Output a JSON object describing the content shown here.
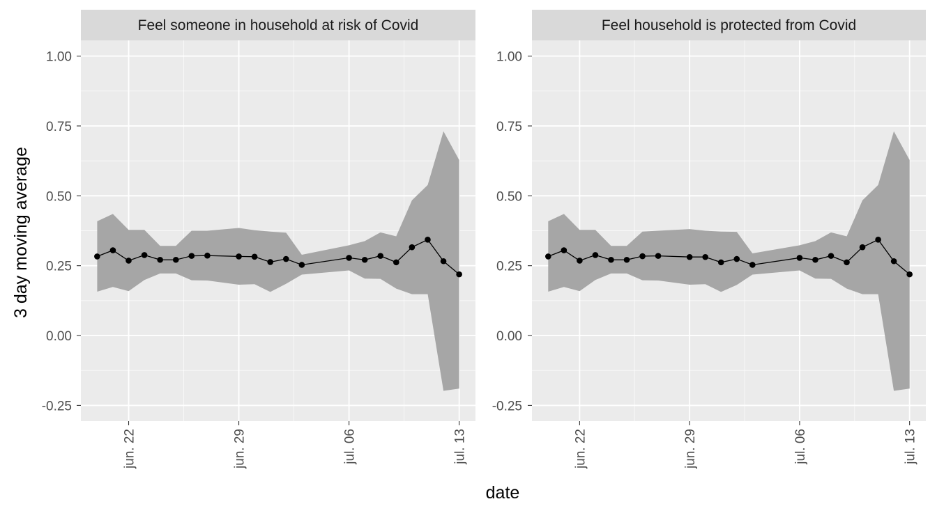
{
  "chart_data": {
    "type": "line",
    "xlabel": "date",
    "ylabel": "3 day moving average",
    "ylim": [
      -0.25,
      1.0
    ],
    "y_ticks": [
      -0.25,
      0.0,
      0.25,
      0.5,
      0.75,
      1.0
    ],
    "y_tick_labels": [
      "-0.25",
      "0.00",
      "0.25",
      "0.50",
      "0.75",
      "1.00"
    ],
    "x_ticks": [
      "2020-06-22",
      "2020-06-29",
      "2020-07-06",
      "2020-07-13"
    ],
    "x_tick_labels": [
      "jun. 22",
      "jun. 29",
      "jul. 06",
      "jul. 13"
    ],
    "grid": true,
    "ribbon": "confidence band",
    "colors": {
      "panel_bg": "#ebebeb",
      "strip_bg": "#d9d9d9",
      "grid": "#ffffff",
      "line": "#000000",
      "band": "#a6a6a6"
    },
    "facets": [
      {
        "title": "Feel someone in household at risk of Covid",
        "points": [
          {
            "x": "2020-06-20",
            "y": 0.283,
            "lo": 0.157,
            "hi": 0.409
          },
          {
            "x": "2020-06-21",
            "y": 0.305,
            "lo": 0.174,
            "hi": 0.435
          },
          {
            "x": "2020-06-22",
            "y": 0.268,
            "lo": 0.159,
            "hi": 0.378
          },
          {
            "x": "2020-06-23",
            "y": 0.288,
            "lo": 0.199,
            "hi": 0.378
          },
          {
            "x": "2020-06-24",
            "y": 0.271,
            "lo": 0.222,
            "hi": 0.321
          },
          {
            "x": "2020-06-25",
            "y": 0.271,
            "lo": 0.222,
            "hi": 0.321
          },
          {
            "x": "2020-06-26",
            "y": 0.285,
            "lo": 0.198,
            "hi": 0.375
          },
          {
            "x": "2020-06-27",
            "y": 0.286,
            "lo": 0.197,
            "hi": 0.375
          },
          {
            "x": "2020-06-29",
            "y": 0.283,
            "lo": 0.182,
            "hi": 0.385
          },
          {
            "x": "2020-06-30",
            "y": 0.282,
            "lo": 0.184,
            "hi": 0.377
          },
          {
            "x": "2020-07-01",
            "y": 0.263,
            "lo": 0.156,
            "hi": 0.372
          },
          {
            "x": "2020-07-02",
            "y": 0.274,
            "lo": 0.185,
            "hi": 0.368
          },
          {
            "x": "2020-07-03",
            "y": 0.253,
            "lo": 0.218,
            "hi": 0.289
          },
          {
            "x": "2020-07-06",
            "y": 0.278,
            "lo": 0.233,
            "hi": 0.323
          },
          {
            "x": "2020-07-07",
            "y": 0.271,
            "lo": 0.204,
            "hi": 0.338
          },
          {
            "x": "2020-07-08",
            "y": 0.285,
            "lo": 0.203,
            "hi": 0.369
          },
          {
            "x": "2020-07-09",
            "y": 0.262,
            "lo": 0.168,
            "hi": 0.355
          },
          {
            "x": "2020-07-10",
            "y": 0.316,
            "lo": 0.148,
            "hi": 0.484
          },
          {
            "x": "2020-07-11",
            "y": 0.343,
            "lo": 0.148,
            "hi": 0.539
          },
          {
            "x": "2020-07-12",
            "y": 0.266,
            "lo": -0.198,
            "hi": 0.731
          },
          {
            "x": "2020-07-13",
            "y": 0.219,
            "lo": -0.19,
            "hi": 0.628
          }
        ]
      },
      {
        "title": "Feel household is protected from Covid",
        "points": [
          {
            "x": "2020-06-20",
            "y": 0.283,
            "lo": 0.157,
            "hi": 0.409
          },
          {
            "x": "2020-06-21",
            "y": 0.305,
            "lo": 0.174,
            "hi": 0.435
          },
          {
            "x": "2020-06-22",
            "y": 0.268,
            "lo": 0.159,
            "hi": 0.378
          },
          {
            "x": "2020-06-23",
            "y": 0.288,
            "lo": 0.199,
            "hi": 0.378
          },
          {
            "x": "2020-06-24",
            "y": 0.271,
            "lo": 0.222,
            "hi": 0.321
          },
          {
            "x": "2020-06-25",
            "y": 0.271,
            "lo": 0.222,
            "hi": 0.321
          },
          {
            "x": "2020-06-26",
            "y": 0.284,
            "lo": 0.198,
            "hi": 0.372
          },
          {
            "x": "2020-06-27",
            "y": 0.285,
            "lo": 0.197,
            "hi": 0.375
          },
          {
            "x": "2020-06-29",
            "y": 0.281,
            "lo": 0.182,
            "hi": 0.381
          },
          {
            "x": "2020-06-30",
            "y": 0.281,
            "lo": 0.184,
            "hi": 0.375
          },
          {
            "x": "2020-07-01",
            "y": 0.262,
            "lo": 0.156,
            "hi": 0.372
          },
          {
            "x": "2020-07-02",
            "y": 0.274,
            "lo": 0.181,
            "hi": 0.371
          },
          {
            "x": "2020-07-03",
            "y": 0.253,
            "lo": 0.218,
            "hi": 0.294
          },
          {
            "x": "2020-07-06",
            "y": 0.278,
            "lo": 0.233,
            "hi": 0.323
          },
          {
            "x": "2020-07-07",
            "y": 0.271,
            "lo": 0.204,
            "hi": 0.338
          },
          {
            "x": "2020-07-08",
            "y": 0.285,
            "lo": 0.203,
            "hi": 0.369
          },
          {
            "x": "2020-07-09",
            "y": 0.262,
            "lo": 0.168,
            "hi": 0.355
          },
          {
            "x": "2020-07-10",
            "y": 0.316,
            "lo": 0.148,
            "hi": 0.484
          },
          {
            "x": "2020-07-11",
            "y": 0.343,
            "lo": 0.148,
            "hi": 0.539
          },
          {
            "x": "2020-07-12",
            "y": 0.266,
            "lo": -0.198,
            "hi": 0.731
          },
          {
            "x": "2020-07-13",
            "y": 0.219,
            "lo": -0.19,
            "hi": 0.628
          }
        ]
      }
    ]
  }
}
